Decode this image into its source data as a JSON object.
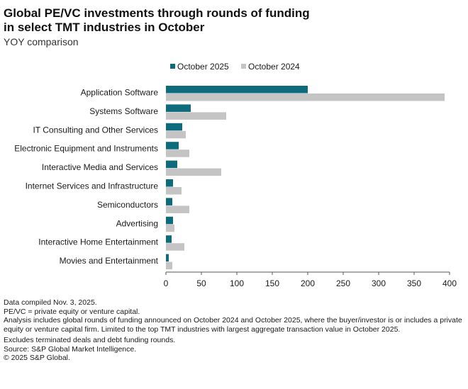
{
  "title_lines": [
    "Global PE/VC investments through rounds of funding",
    "in select TMT industries in October"
  ],
  "subtitle": "YOY comparison",
  "colors": {
    "october_2025": "#0e6b7c",
    "october_2024": "#c4c4c4",
    "axis": "#555555",
    "text": "#1a1a1a"
  },
  "chart_data": {
    "type": "bar",
    "orientation": "horizontal",
    "categories": [
      "Application Software",
      "Systems Software",
      "IT Consulting and Other Services",
      "Electronic Equipment and Instruments",
      "Interactive Media and Services",
      "Internet Services and Infrastructure",
      "Semiconductors",
      "Advertising",
      "Interactive Home Entertainment",
      "Movies and Entertainment"
    ],
    "series": [
      {
        "name": "October 2025",
        "values": [
          200,
          35,
          23,
          18,
          16,
          10,
          9,
          10,
          8,
          4
        ]
      },
      {
        "name": "October 2024",
        "values": [
          393,
          85,
          28,
          33,
          78,
          22,
          33,
          12,
          26,
          9
        ]
      }
    ],
    "xlim": [
      0,
      400
    ],
    "xticks": [
      0,
      50,
      100,
      150,
      200,
      250,
      300,
      350,
      400
    ],
    "legend_position": "top",
    "grid": false
  },
  "notes": [
    "Data compiled Nov. 3, 2025.",
    "PE/VC = private equity or venture capital.",
    "Analysis includes global rounds of funding announced on October 2024 and October 2025, where the buyer/investor is or includes a private equity or venture capital firm. Limited to the top TMT industries with largest aggregate transaction value in October 2025.",
    "Excludes terminated deals and debt funding rounds.",
    "Source: S&P Global Market Intelligence.",
    "© 2025 S&P Global."
  ]
}
